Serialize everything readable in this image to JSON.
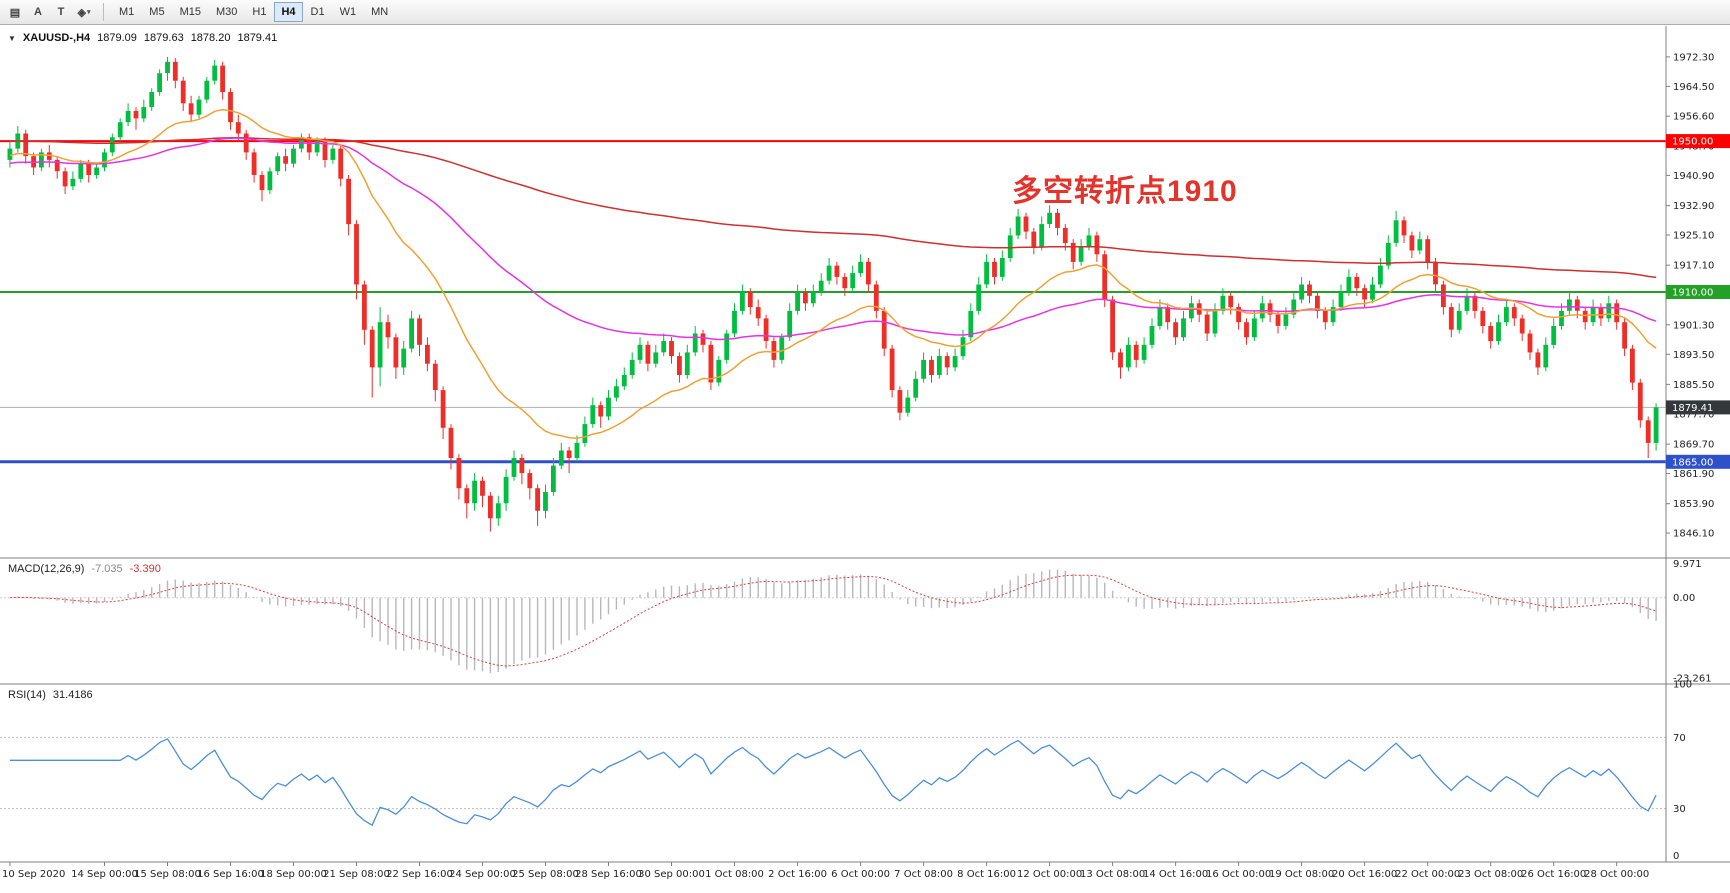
{
  "toolbar": {
    "tools": [
      {
        "name": "chart-window",
        "glyph": "▤"
      },
      {
        "name": "text-tool",
        "glyph": "A"
      },
      {
        "name": "type-tool",
        "glyph": "T"
      },
      {
        "name": "objects-dropdown",
        "glyph": "◈",
        "caret": "▾"
      }
    ],
    "timeframes": [
      "M1",
      "M5",
      "M15",
      "M30",
      "H1",
      "H4",
      "D1",
      "W1",
      "MN"
    ],
    "active_timeframe": "H4"
  },
  "quote": {
    "collapse_icon": "▼",
    "symbol": "XAUUSD-,H4",
    "open": "1879.09",
    "high": "1879.63",
    "low": "1878.20",
    "close": "1879.41"
  },
  "annotation": {
    "text": "多空转折点1910",
    "color": "#e3342b"
  },
  "hlines": [
    {
      "label": "1950.00",
      "price": 1950.0,
      "color": "#fe0000",
      "width": 2
    },
    {
      "label": "1910.00",
      "price": 1910.0,
      "color": "#22a126",
      "width": 2
    },
    {
      "label": "1865.00",
      "price": 1865.0,
      "color": "#2e50c8",
      "width": 3
    }
  ],
  "current_price": {
    "label": "1879.41",
    "price": 1879.41,
    "line_color": "#b0b0b0",
    "badge_color": "#34383d"
  },
  "price_axis": {
    "top_price": 1980.5,
    "bottom_price": 1839.5,
    "ticks": [
      "1972.30",
      "1964.50",
      "1956.60",
      "1948.70",
      "1940.90",
      "1932.90",
      "1925.10",
      "1917.10",
      "1909.30",
      "1901.30",
      "1893.50",
      "1885.50",
      "1877.70",
      "1869.70",
      "1861.90",
      "1853.90",
      "1846.10"
    ]
  },
  "time_axis": {
    "labels": [
      "10 Sep 2020",
      "14 Sep 00:00",
      "15 Sep 08:00",
      "16 Sep 16:00",
      "18 Sep 00:00",
      "21 Sep 08:00",
      "22 Sep 16:00",
      "24 Sep 00:00",
      "25 Sep 08:00",
      "28 Sep 16:00",
      "30 Sep 00:00",
      "1 Oct 08:00",
      "2 Oct 16:00",
      "6 Oct 00:00",
      "7 Oct 08:00",
      "8 Oct 16:00",
      "12 Oct 00:00",
      "13 Oct 08:00",
      "14 Oct 16:00",
      "16 Oct 00:00",
      "19 Oct 08:00",
      "20 Oct 16:00",
      "22 Oct 00:00",
      "23 Oct 08:00",
      "26 Oct 16:00",
      "28 Oct 00:00"
    ],
    "positions": [
      0,
      12,
      20,
      28,
      36,
      44,
      52,
      60,
      68,
      76,
      84,
      92,
      100,
      108,
      116,
      124,
      132,
      140,
      148,
      156,
      164,
      172,
      180,
      188,
      196,
      204
    ]
  },
  "indicators": {
    "macd": {
      "label": "MACD(12,26,9)",
      "value": "-7.035",
      "signal_value": "-3.390",
      "axis_labels": [
        "9.971",
        "0.00",
        "-23.261"
      ],
      "axis_values": [
        9.971,
        0,
        -23.261
      ],
      "ylim": [
        -25,
        11.5
      ],
      "histogram_color": "#b8b8b8",
      "signal_color": "#e23b3b"
    },
    "rsi": {
      "label": "RSI(14)",
      "value": "31.4186",
      "axis_labels": [
        "100",
        "70",
        "30",
        "0"
      ],
      "axis_values": [
        100,
        70,
        30,
        0
      ],
      "levels": [
        70,
        30
      ],
      "line_color": "#4a90d9",
      "ylim": [
        0,
        100
      ]
    }
  },
  "chart_data": {
    "type": "candlestick",
    "symbol": "XAUUSD",
    "timeframe": "H4",
    "bull_color": "#00bf40",
    "bear_color": "#ef2e27",
    "ma_lines": [
      {
        "name": "slow",
        "color": "#d02f2f",
        "alpha": 0.008,
        "seed": 1950
      },
      {
        "name": "medium",
        "color": "#e631e6",
        "alpha": 0.03,
        "seed": 1944
      },
      {
        "name": "fast",
        "color": "#f0a135",
        "alpha": 0.09,
        "seed": 1946
      }
    ],
    "candles": [
      [
        1945,
        1950,
        1943,
        1948
      ],
      [
        1948,
        1954,
        1947,
        1952
      ],
      [
        1952,
        1953,
        1944,
        1946
      ],
      [
        1946,
        1947,
        1941,
        1943
      ],
      [
        1943,
        1948,
        1942,
        1947
      ],
      [
        1947,
        1949,
        1943,
        1945
      ],
      [
        1945,
        1946,
        1940,
        1942
      ],
      [
        1942,
        1943,
        1936,
        1938
      ],
      [
        1938,
        1942,
        1937,
        1940
      ],
      [
        1940,
        1945,
        1939,
        1944
      ],
      [
        1944,
        1945,
        1939,
        1941
      ],
      [
        1941,
        1944,
        1940,
        1943
      ],
      [
        1943,
        1948,
        1942,
        1947
      ],
      [
        1947,
        1952,
        1946,
        1951
      ],
      [
        1951,
        1956,
        1950,
        1955
      ],
      [
        1955,
        1960,
        1954,
        1958
      ],
      [
        1958,
        1959,
        1953,
        1956
      ],
      [
        1956,
        1961,
        1955,
        1959
      ],
      [
        1959,
        1964,
        1958,
        1963
      ],
      [
        1963,
        1969,
        1962,
        1968
      ],
      [
        1968,
        1972.3,
        1966,
        1971
      ],
      [
        1971,
        1972,
        1964,
        1966
      ],
      [
        1966,
        1967,
        1958,
        1960
      ],
      [
        1960,
        1962,
        1955,
        1957
      ],
      [
        1957,
        1962,
        1956,
        1961
      ],
      [
        1961,
        1967,
        1960,
        1966
      ],
      [
        1966,
        1971.5,
        1965,
        1970
      ],
      [
        1970,
        1971,
        1961,
        1963
      ],
      [
        1963,
        1964,
        1953,
        1955
      ],
      [
        1955,
        1957,
        1950,
        1952
      ],
      [
        1952,
        1953,
        1945,
        1947
      ],
      [
        1947,
        1948,
        1939,
        1941
      ],
      [
        1941,
        1942,
        1934,
        1937
      ],
      [
        1937,
        1943,
        1936,
        1942
      ],
      [
        1942,
        1947,
        1941,
        1946
      ],
      [
        1946,
        1948,
        1942,
        1944
      ],
      [
        1944,
        1949,
        1943,
        1948
      ],
      [
        1948,
        1952,
        1947,
        1951
      ],
      [
        1951,
        1952,
        1945,
        1947
      ],
      [
        1947,
        1951,
        1946,
        1950
      ],
      [
        1950,
        1951,
        1943,
        1945
      ],
      [
        1945,
        1949,
        1944,
        1948
      ],
      [
        1948,
        1949,
        1938,
        1940
      ],
      [
        1940,
        1941,
        1925,
        1928
      ],
      [
        1928,
        1929,
        1908,
        1912
      ],
      [
        1912,
        1913,
        1896,
        1900
      ],
      [
        1900,
        1901,
        1882,
        1890
      ],
      [
        1890,
        1906,
        1885,
        1902
      ],
      [
        1902,
        1904,
        1895,
        1898
      ],
      [
        1898,
        1899,
        1887,
        1890
      ],
      [
        1890,
        1897,
        1888,
        1895
      ],
      [
        1895,
        1905,
        1894,
        1903
      ],
      [
        1903,
        1904,
        1893,
        1896
      ],
      [
        1896,
        1898,
        1889,
        1891
      ],
      [
        1891,
        1892,
        1881,
        1884
      ],
      [
        1884,
        1885,
        1871,
        1874
      ],
      [
        1874,
        1875,
        1863,
        1866
      ],
      [
        1866,
        1867,
        1855,
        1858
      ],
      [
        1858,
        1859,
        1850,
        1854
      ],
      [
        1854,
        1862,
        1852,
        1860
      ],
      [
        1860,
        1861,
        1853,
        1856
      ],
      [
        1856,
        1857,
        1846.5,
        1850
      ],
      [
        1850,
        1856,
        1848,
        1854
      ],
      [
        1854,
        1863,
        1852,
        1861
      ],
      [
        1861,
        1868,
        1860,
        1866
      ],
      [
        1866,
        1867,
        1859,
        1862
      ],
      [
        1862,
        1863,
        1855,
        1858
      ],
      [
        1858,
        1859,
        1848,
        1852
      ],
      [
        1852,
        1859,
        1850,
        1857
      ],
      [
        1857,
        1866,
        1856,
        1864
      ],
      [
        1864,
        1870,
        1863,
        1868
      ],
      [
        1868,
        1869,
        1862,
        1866
      ],
      [
        1866,
        1872,
        1865,
        1870
      ],
      [
        1870,
        1877,
        1869,
        1875
      ],
      [
        1875,
        1882,
        1874,
        1880
      ],
      [
        1880,
        1881,
        1874,
        1877
      ],
      [
        1877,
        1884,
        1876,
        1882
      ],
      [
        1882,
        1887,
        1881,
        1885
      ],
      [
        1885,
        1890,
        1884,
        1888
      ],
      [
        1888,
        1894,
        1887,
        1892
      ],
      [
        1892,
        1898,
        1891,
        1896
      ],
      [
        1896,
        1897,
        1889,
        1891
      ],
      [
        1891,
        1896,
        1890,
        1894
      ],
      [
        1894,
        1899,
        1893,
        1897
      ],
      [
        1897,
        1898,
        1891,
        1893
      ],
      [
        1893,
        1894,
        1886,
        1888
      ],
      [
        1888,
        1896,
        1887,
        1894
      ],
      [
        1894,
        1901,
        1893,
        1899
      ],
      [
        1899,
        1900,
        1894,
        1896
      ],
      [
        1896,
        1897,
        1884,
        1886
      ],
      [
        1886,
        1893,
        1885,
        1892
      ],
      [
        1892,
        1900,
        1891,
        1899
      ],
      [
        1899,
        1907,
        1898,
        1905
      ],
      [
        1905,
        1912,
        1904,
        1910
      ],
      [
        1910,
        1911,
        1904,
        1906
      ],
      [
        1906,
        1908,
        1901,
        1903
      ],
      [
        1903,
        1904,
        1895,
        1897
      ],
      [
        1897,
        1898,
        1890,
        1892
      ],
      [
        1892,
        1899,
        1891,
        1898
      ],
      [
        1898,
        1907,
        1897,
        1905
      ],
      [
        1905,
        1912,
        1904,
        1910
      ],
      [
        1910,
        1911,
        1905,
        1907
      ],
      [
        1907,
        1912,
        1906,
        1910
      ],
      [
        1910,
        1915,
        1909,
        1913
      ],
      [
        1913,
        1919,
        1912,
        1917
      ],
      [
        1917,
        1918,
        1912,
        1914
      ],
      [
        1914,
        1915,
        1909,
        1911
      ],
      [
        1911,
        1917,
        1910,
        1915
      ],
      [
        1915,
        1920,
        1914,
        1918
      ],
      [
        1918,
        1919,
        1910,
        1912
      ],
      [
        1912,
        1913,
        1903,
        1905
      ],
      [
        1905,
        1906,
        1893,
        1895
      ],
      [
        1895,
        1896,
        1882,
        1884
      ],
      [
        1884,
        1885,
        1876,
        1878
      ],
      [
        1878,
        1884,
        1877,
        1882
      ],
      [
        1882,
        1889,
        1881,
        1887
      ],
      [
        1887,
        1894,
        1886,
        1892
      ],
      [
        1892,
        1893,
        1886,
        1888
      ],
      [
        1888,
        1895,
        1887,
        1893
      ],
      [
        1893,
        1894,
        1888,
        1890
      ],
      [
        1890,
        1895,
        1889,
        1893
      ],
      [
        1893,
        1900,
        1892,
        1898
      ],
      [
        1898,
        1907,
        1897,
        1905
      ],
      [
        1905,
        1914,
        1904,
        1912
      ],
      [
        1912,
        1920,
        1911,
        1918
      ],
      [
        1918,
        1919,
        1912,
        1914
      ],
      [
        1914,
        1921,
        1913,
        1919
      ],
      [
        1919,
        1927,
        1918,
        1925
      ],
      [
        1925,
        1932,
        1924,
        1930
      ],
      [
        1930,
        1931,
        1924,
        1926
      ],
      [
        1926,
        1927,
        1920,
        1922
      ],
      [
        1922,
        1930,
        1921,
        1928
      ],
      [
        1928,
        1933,
        1927,
        1931
      ],
      [
        1931,
        1932,
        1925,
        1927
      ],
      [
        1927,
        1928,
        1921,
        1923
      ],
      [
        1923,
        1924,
        1916,
        1918
      ],
      [
        1918,
        1924,
        1917,
        1922
      ],
      [
        1922,
        1927,
        1921,
        1925
      ],
      [
        1925,
        1926,
        1918,
        1920
      ],
      [
        1920,
        1921,
        1906,
        1908
      ],
      [
        1908,
        1909,
        1892,
        1894
      ],
      [
        1894,
        1895,
        1887,
        1890
      ],
      [
        1890,
        1898,
        1889,
        1896
      ],
      [
        1896,
        1897,
        1890,
        1892
      ],
      [
        1892,
        1898,
        1891,
        1896
      ],
      [
        1896,
        1903,
        1895,
        1901
      ],
      [
        1901,
        1908,
        1900,
        1906
      ],
      [
        1906,
        1907,
        1900,
        1902
      ],
      [
        1902,
        1903,
        1896,
        1898
      ],
      [
        1898,
        1905,
        1897,
        1903
      ],
      [
        1903,
        1909,
        1902,
        1907
      ],
      [
        1907,
        1908,
        1902,
        1904
      ],
      [
        1904,
        1905,
        1897,
        1899
      ],
      [
        1899,
        1907,
        1898,
        1905
      ],
      [
        1905,
        1911,
        1904,
        1909
      ],
      [
        1909,
        1910,
        1904,
        1906
      ],
      [
        1906,
        1907,
        1900,
        1902
      ],
      [
        1902,
        1903,
        1896,
        1898
      ],
      [
        1898,
        1905,
        1897,
        1903
      ],
      [
        1903,
        1909,
        1902,
        1907
      ],
      [
        1907,
        1908,
        1902,
        1904
      ],
      [
        1904,
        1905,
        1899,
        1901
      ],
      [
        1901,
        1906,
        1900,
        1904
      ],
      [
        1904,
        1910,
        1903,
        1908
      ],
      [
        1908,
        1914,
        1907,
        1912
      ],
      [
        1912,
        1913,
        1907,
        1909
      ],
      [
        1909,
        1910,
        1903,
        1905
      ],
      [
        1905,
        1906,
        1900,
        1902
      ],
      [
        1902,
        1908,
        1901,
        1906
      ],
      [
        1906,
        1912,
        1905,
        1910
      ],
      [
        1910,
        1916,
        1909,
        1914
      ],
      [
        1914,
        1915,
        1909,
        1911
      ],
      [
        1911,
        1912,
        1906,
        1908
      ],
      [
        1908,
        1914,
        1907,
        1912
      ],
      [
        1912,
        1919,
        1911,
        1917
      ],
      [
        1917,
        1925,
        1916,
        1923
      ],
      [
        1923,
        1931.5,
        1922,
        1929
      ],
      [
        1929,
        1930,
        1923,
        1925
      ],
      [
        1925,
        1926,
        1919,
        1921
      ],
      [
        1921,
        1926,
        1920,
        1924
      ],
      [
        1924,
        1925,
        1916,
        1918
      ],
      [
        1918,
        1919,
        1910,
        1912
      ],
      [
        1912,
        1913,
        1904,
        1906
      ],
      [
        1906,
        1907,
        1898,
        1900
      ],
      [
        1900,
        1907,
        1899,
        1905
      ],
      [
        1905,
        1911,
        1904,
        1909
      ],
      [
        1909,
        1910,
        1903,
        1905
      ],
      [
        1905,
        1906,
        1899,
        1901
      ],
      [
        1901,
        1902,
        1895,
        1897
      ],
      [
        1897,
        1904,
        1896,
        1902
      ],
      [
        1902,
        1908,
        1901,
        1906
      ],
      [
        1906,
        1907,
        1901,
        1903
      ],
      [
        1903,
        1904,
        1897,
        1899
      ],
      [
        1899,
        1900,
        1892,
        1894
      ],
      [
        1894,
        1895,
        1888,
        1890
      ],
      [
        1890,
        1898,
        1889,
        1896
      ],
      [
        1896,
        1903,
        1895,
        1901
      ],
      [
        1901,
        1907,
        1900,
        1905
      ],
      [
        1905,
        1910,
        1904,
        1908
      ],
      [
        1908,
        1909,
        1903,
        1905
      ],
      [
        1905,
        1906,
        1900,
        1902
      ],
      [
        1902,
        1908,
        1901,
        1906
      ],
      [
        1906,
        1907,
        1901,
        1903
      ],
      [
        1903,
        1909,
        1902,
        1907
      ],
      [
        1907,
        1908,
        1900,
        1902
      ],
      [
        1902,
        1903,
        1893,
        1895
      ],
      [
        1895,
        1896,
        1884,
        1886
      ],
      [
        1886,
        1887,
        1874,
        1876
      ],
      [
        1876,
        1877,
        1866,
        1870
      ],
      [
        1870,
        1880.5,
        1868,
        1879.41
      ]
    ]
  }
}
